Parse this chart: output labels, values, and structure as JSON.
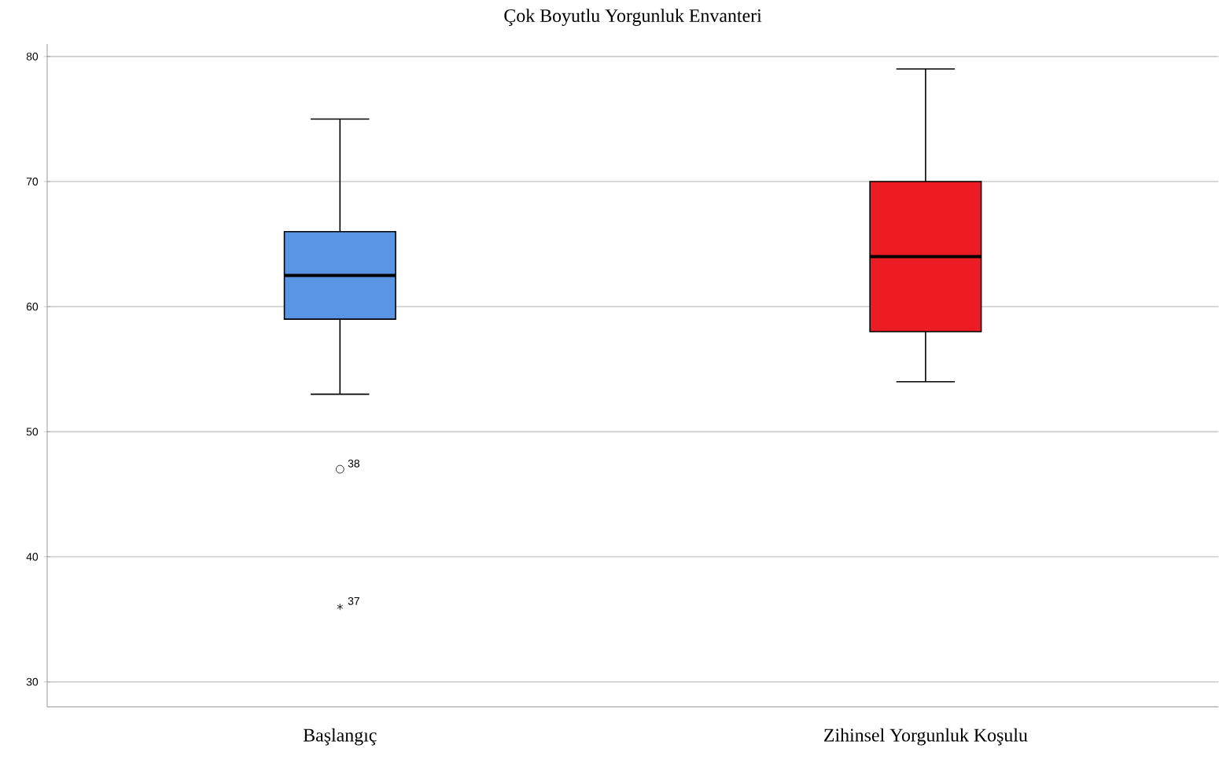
{
  "chart_data": {
    "type": "box",
    "title": "Çok Boyutlu Yorgunluk Envanteri",
    "categories": [
      "Başlangıç",
      "Zihinsel Yorgunluk Koşulu"
    ],
    "colors": [
      "#5a95e3",
      "#ec1c24"
    ],
    "boxes": [
      {
        "low": 53,
        "q1": 59,
        "median": 62.5,
        "q3": 66,
        "high": 75,
        "outliers": [
          47,
          36
        ]
      },
      {
        "low": 54,
        "q1": 58,
        "median": 64,
        "q3": 70,
        "high": 79
      }
    ],
    "ylim": [
      28,
      81
    ],
    "yticks": [
      30,
      40,
      50,
      60,
      70,
      80
    ],
    "grid": "y",
    "annotations": [
      "38",
      "37"
    ]
  }
}
